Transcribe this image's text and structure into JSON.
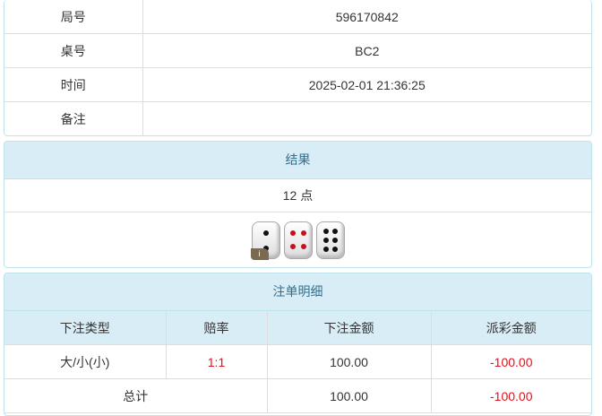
{
  "info": [
    {
      "label": "局号",
      "value": "596170842"
    },
    {
      "label": "桌号",
      "value": "BC2"
    },
    {
      "label": "时间",
      "value": "2025-02-01 21:36:25"
    },
    {
      "label": "备注",
      "value": ""
    }
  ],
  "result": {
    "title": "结果",
    "points": "12 点",
    "dice": [
      2,
      4,
      6
    ],
    "badge": "i"
  },
  "bets": {
    "title": "注单明细",
    "headers": [
      "下注类型",
      "赔率",
      "下注金额",
      "派彩金额"
    ],
    "row": {
      "type": "大/小(小)",
      "odds": "1:1",
      "amount": "100.00",
      "payout": "-100.00"
    },
    "total": {
      "label": "总计",
      "amount": "100.00",
      "payout": "-100.00"
    }
  },
  "colors": {
    "header_bg": "#d9edf7",
    "negative": "#e4101c"
  }
}
